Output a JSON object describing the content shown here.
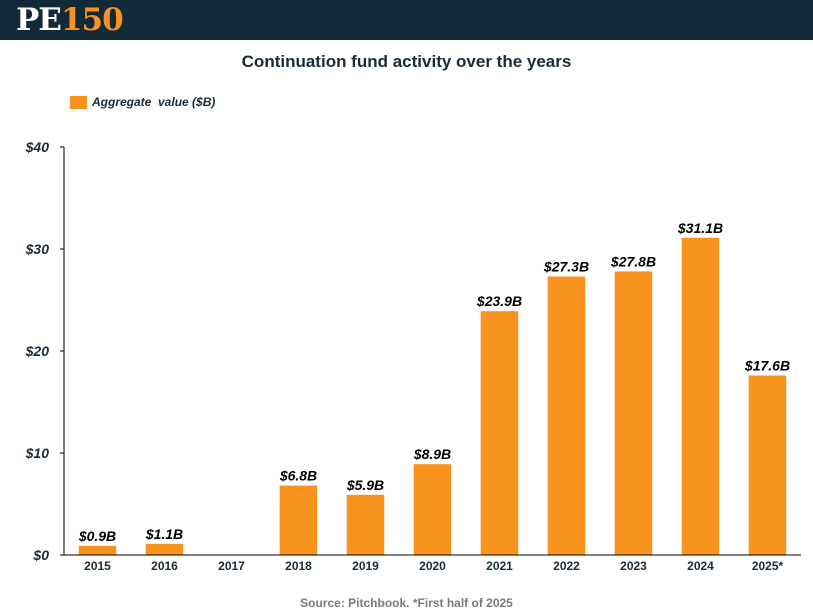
{
  "header": {
    "logo_text_a": "PE",
    "logo_text_b": "150",
    "logo_color_a": "#ffffff",
    "logo_color_b": "#f7931e",
    "bar_color": "#122a38"
  },
  "source_note": "Source: Pitchbook. *First half of 2025",
  "chart_data": {
    "type": "bar",
    "title": "Continuation fund activity over the years",
    "xlabel": "",
    "ylabel": "",
    "categories": [
      "2015",
      "2016",
      "2017",
      "2018",
      "2019",
      "2020",
      "2021",
      "2022",
      "2023",
      "2024",
      "2025*"
    ],
    "series": [
      {
        "name": "Aggregate  value ($B)",
        "color": "#f7931e",
        "values": [
          0.9,
          1.1,
          0,
          6.8,
          5.9,
          8.9,
          23.9,
          27.3,
          27.8,
          31.1,
          17.6
        ],
        "data_labels": [
          "$0.9B",
          "$1.1B",
          "",
          "$6.8B",
          "$5.9B",
          "$8.9B",
          "$23.9B",
          "$27.3B",
          "$27.8B",
          "$31.1B",
          "$17.6B"
        ]
      }
    ],
    "ylim": [
      0,
      40
    ],
    "yticks": [
      0,
      10,
      20,
      30,
      40
    ],
    "ytick_labels": [
      "$0",
      "$10",
      "$20",
      "$30",
      "$40"
    ],
    "grid": false,
    "legend_position": "top-left"
  }
}
